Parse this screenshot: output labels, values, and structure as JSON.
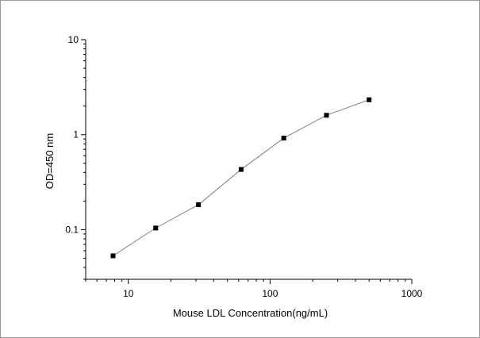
{
  "chart_data": {
    "type": "line",
    "xlabel": "Mouse LDL  Concentration(ng/mL)",
    "ylabel": "OD=450 nm",
    "x_scale": "log",
    "y_scale": "log",
    "xlim": [
      5,
      1000
    ],
    "ylim": [
      0.03,
      10
    ],
    "x_ticks": [
      10,
      100,
      1000
    ],
    "x_tick_labels": [
      "10",
      "100",
      "1000"
    ],
    "y_ticks": [
      0.1,
      1,
      10
    ],
    "y_tick_labels": [
      "0.1",
      "1",
      "10"
    ],
    "grid": false,
    "series": [
      {
        "x": [
          7.8,
          15.6,
          31.25,
          62.5,
          125,
          250,
          500
        ],
        "y": [
          0.053,
          0.104,
          0.183,
          0.43,
          0.92,
          1.6,
          2.33
        ],
        "marker": "square",
        "line_color": "#808080",
        "marker_color": "#000000"
      }
    ]
  }
}
